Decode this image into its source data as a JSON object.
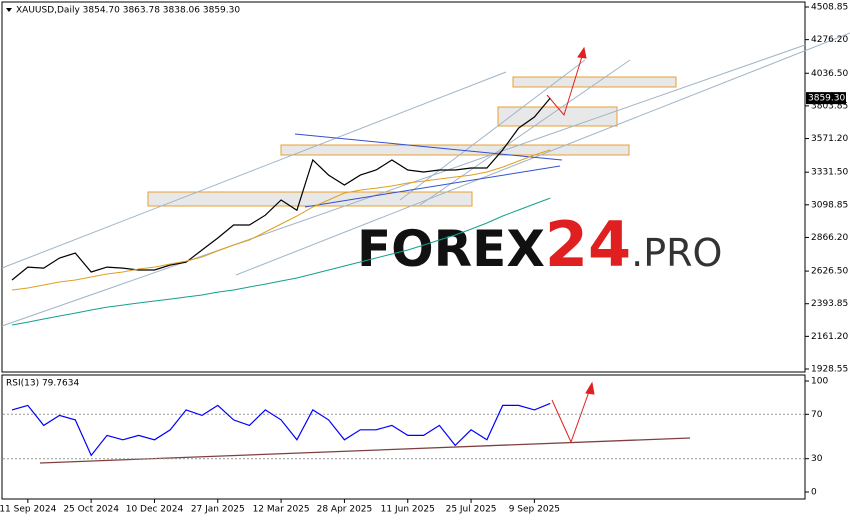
{
  "chart_data": [
    {
      "type": "line",
      "title": "XAUUSD,Daily 3854.70 3863.78 3838.06 3859.30",
      "price_label": "3859.30",
      "categories": [
        null,
        "11 Sep 2024",
        null,
        null,
        null,
        "25 Oct 2024",
        null,
        null,
        null,
        "10 Dec 2024",
        null,
        null,
        null,
        "27 Jan 2025",
        null,
        null,
        null,
        "12 Mar 2025",
        null,
        null,
        null,
        "28 Apr 2025",
        null,
        null,
        null,
        "11 Jun 2025",
        null,
        null,
        null,
        "25 Jul 2025",
        null,
        null,
        null,
        "9 Sep 2025",
        null
      ],
      "series": [
        {
          "color": "#000000",
          "values": [
            2563,
            2655,
            2648,
            2720,
            2755,
            2620,
            2655,
            2648,
            2634,
            2634,
            2670,
            2690,
            2777,
            2862,
            2955,
            2955,
            3025,
            3133,
            3060,
            3418,
            3311,
            3240,
            3311,
            3347,
            3418,
            3347,
            3333,
            3347,
            3347,
            3361,
            3361,
            3490,
            3646,
            3725,
            3859.3
          ]
        },
        {
          "color": "#e0a020",
          "values": [
            2492,
            2506,
            2527,
            2549,
            2563,
            2584,
            2606,
            2620,
            2641,
            2655,
            2677,
            2698,
            2727,
            2770,
            2812,
            2848,
            2905,
            2962,
            3019,
            3083,
            3133,
            3183,
            3204,
            3218,
            3233,
            3254,
            3268,
            3283,
            3297,
            3311,
            3333,
            3368,
            3411,
            3454,
            3490
          ]
        },
        {
          "color": "#14a08c",
          "values": [
            2242,
            2263,
            2285,
            2306,
            2327,
            2349,
            2370,
            2384,
            2399,
            2413,
            2427,
            2442,
            2456,
            2477,
            2492,
            2513,
            2534,
            2556,
            2577,
            2606,
            2634,
            2663,
            2691,
            2720,
            2748,
            2777,
            2812,
            2848,
            2884,
            2926,
            2969,
            3019,
            3062,
            3105,
            3147
          ]
        }
      ],
      "ylim": [
        1928.55,
        4508.85
      ],
      "yticks": [
        4508.85,
        {
          "value": 4276.2,
          "label": "4276.20"
        },
        {
          "value": 4036.5,
          "label": "4036.50"
        },
        3803.85,
        {
          "value": 3571.2,
          "label": "3571.20"
        },
        {
          "value": 3331.5,
          "label": "3331.50"
        },
        3098.85,
        {
          "value": 2866.2,
          "label": "2866.20"
        },
        {
          "value": 2626.5,
          "label": "2626.50"
        },
        2393.85,
        {
          "value": 2161.2,
          "label": "2161.20"
        },
        1928.55
      ]
    },
    {
      "type": "line",
      "title": "RSI(13) 79.7634",
      "series": [
        {
          "color": "#0000ff",
          "values": [
            74,
            78,
            60,
            69,
            65,
            33,
            51,
            47,
            51,
            47,
            56,
            74,
            69,
            78,
            65,
            60,
            74,
            65,
            47,
            74,
            65,
            47,
            56,
            56,
            60,
            51,
            51,
            60,
            42,
            56,
            47,
            78,
            78,
            74,
            79.8
          ]
        }
      ],
      "ylim": [
        0,
        100
      ],
      "yticks": [
        0,
        30,
        70,
        100
      ]
    }
  ],
  "watermark": {
    "part1": "FOREX",
    "part2": "24",
    "part3": ".PRO"
  }
}
